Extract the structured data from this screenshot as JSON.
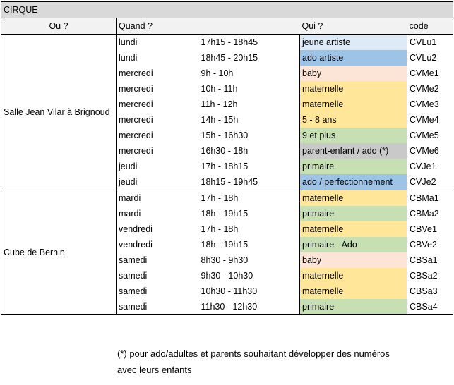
{
  "title": "CIRQUE",
  "headers": {
    "ou": "Ou ?",
    "quand": "Quand ?",
    "qui": "Qui ?",
    "code": "code"
  },
  "colors": {
    "header_bg": "#d9d9d9",
    "subheader_bg": "#f2f2f2",
    "jeune artiste": "#deebf7",
    "ado artiste": "#9dc3e6",
    "baby": "#fce4d6",
    "maternelle": "#ffe699",
    "5 - 8 ans": "#ffe699",
    "9 et plus": "#c6e0b4",
    "parent-enfant": "#c9c9c9",
    "primaire": "#c6e0b4",
    "ado / perfectionnement": "#9dc3e6"
  },
  "groups": [
    {
      "place": "Salle Jean Vilar à Brignoud",
      "rows": [
        {
          "day": "lundi",
          "time": "17h15 - 18h45",
          "who": "jeune artiste",
          "color": "#deebf7",
          "code": "CVLu1"
        },
        {
          "day": "lundi",
          "time": "18h45 - 20h15",
          "who": "ado artiste",
          "color": "#9dc3e6",
          "code": "CVLu2"
        },
        {
          "day": "mercredi",
          "time": "9h - 10h",
          "who": "baby",
          "color": "#fce4d6",
          "code": "CVMe1"
        },
        {
          "day": "mercredi",
          "time": "10h - 11h",
          "who": "maternelle",
          "color": "#ffe699",
          "code": "CVMe2"
        },
        {
          "day": "mercredi",
          "time": "11h - 12h",
          "who": "maternelle",
          "color": "#ffe699",
          "code": "CVMe3"
        },
        {
          "day": "mercredi",
          "time": "14h - 15h",
          "who": "5 - 8 ans",
          "color": "#ffe699",
          "code": "CVMe4"
        },
        {
          "day": "mercredi",
          "time": "15h - 16h30",
          "who": "9 et plus",
          "color": "#c6e0b4",
          "code": "CVMe5"
        },
        {
          "day": "mercredi",
          "time": "16h30 - 18h",
          "who": "parent-enfant / ado (*)",
          "color": "#c9c9c9",
          "code": "CVMe6"
        },
        {
          "day": "jeudi",
          "time": "17h - 18h15",
          "who": "primaire",
          "color": "#c6e0b4",
          "code": "CVJe1"
        },
        {
          "day": "jeudi",
          "time": "18h15 - 19h45",
          "who": "ado / perfectionnement",
          "color": "#9dc3e6",
          "code": "CVJe2"
        }
      ]
    },
    {
      "place": "Cube de Bernin",
      "rows": [
        {
          "day": "mardi",
          "time": "17h - 18h",
          "who": "maternelle",
          "color": "#ffe699",
          "code": "CBMa1"
        },
        {
          "day": "mardi",
          "time": "18h - 19h15",
          "who": "primaire",
          "color": "#c6e0b4",
          "code": "CBMa2"
        },
        {
          "day": "vendredi",
          "time": "17h - 18h",
          "who": "maternelle",
          "color": "#ffe699",
          "code": "CBVe1"
        },
        {
          "day": "vendredi",
          "time": "18h - 19h15",
          "who": "primaire - Ado",
          "color": "#c6e0b4",
          "code": "CBVe2"
        },
        {
          "day": "samedi",
          "time": "8h30 - 9h30",
          "who": "baby",
          "color": "#fce4d6",
          "code": "CBSa1"
        },
        {
          "day": "samedi",
          "time": "9h30 - 10h30",
          "who": "maternelle",
          "color": "#ffe699",
          "code": "CBSa2"
        },
        {
          "day": "samedi",
          "time": "10h30 - 11h30",
          "who": "maternelle",
          "color": "#ffe699",
          "code": "CBSa3"
        },
        {
          "day": "samedi",
          "time": "11h30 - 12h30",
          "who": "primaire",
          "color": "#c6e0b4",
          "code": "CBSa4"
        }
      ]
    }
  ],
  "footnote": {
    "line1": "(*) pour ado/adultes et parents souhaitant développer des numéros",
    "line2": "avec leurs enfants"
  }
}
